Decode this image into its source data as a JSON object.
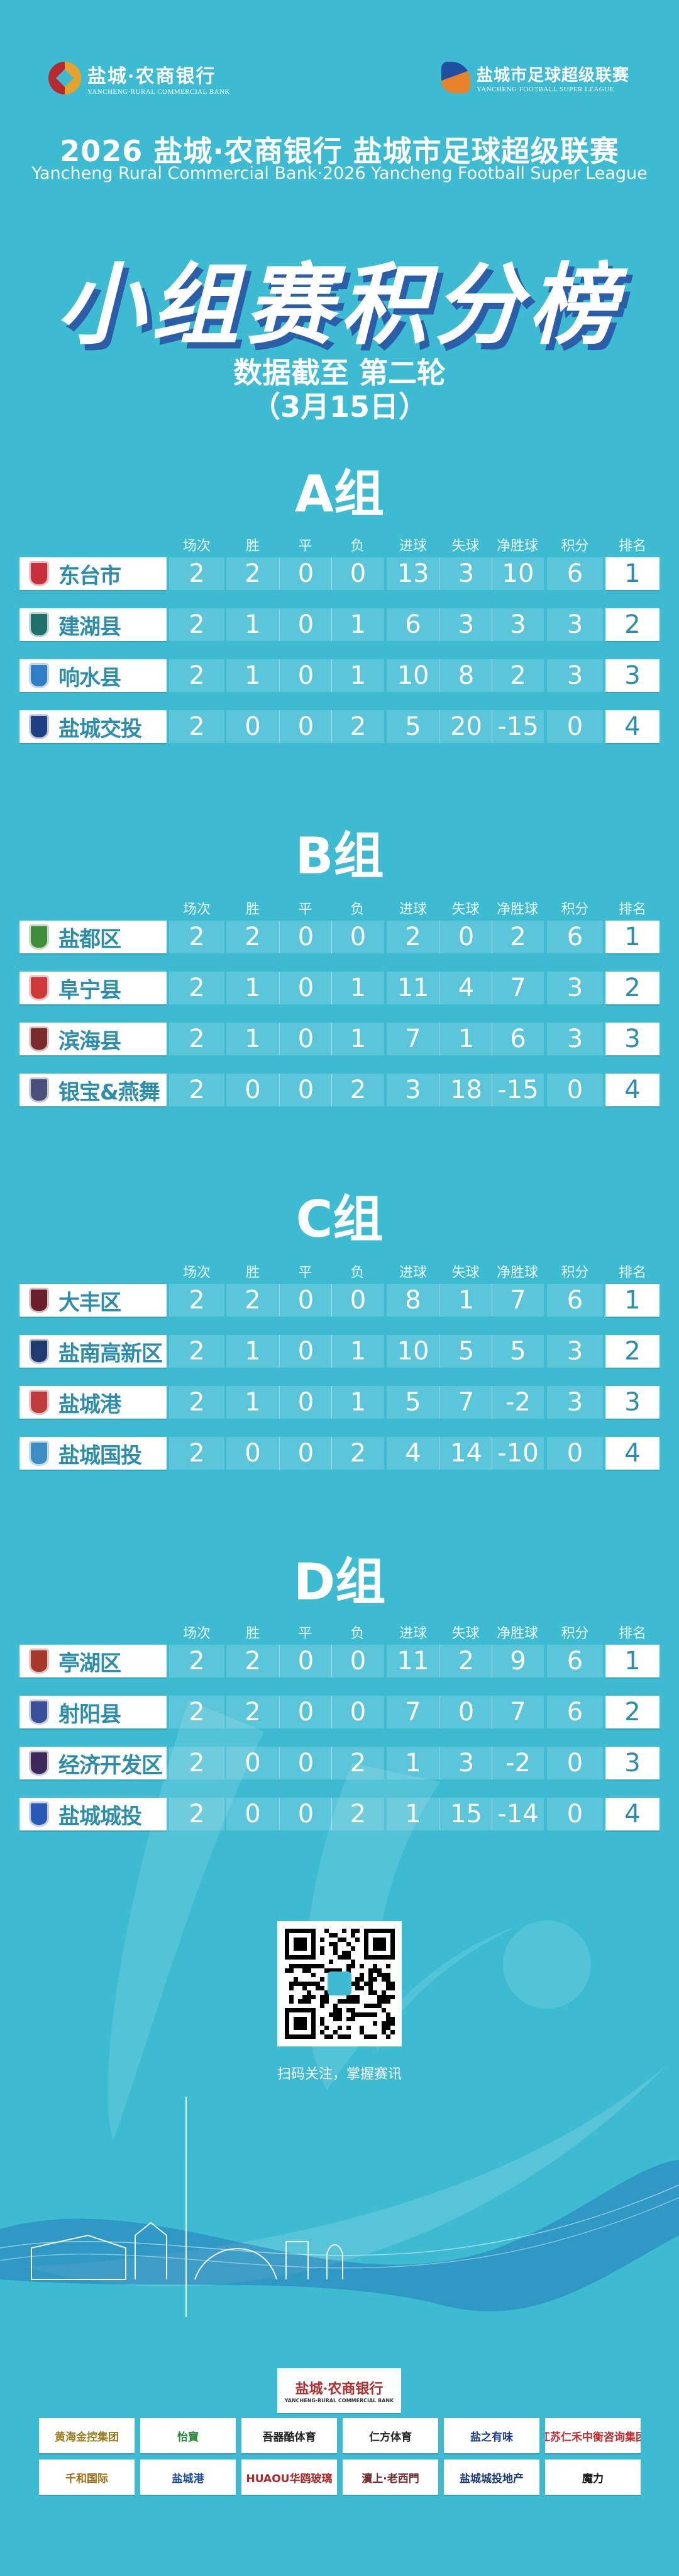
{
  "header": {
    "left_logo": {
      "name": "盐城·农商银行",
      "sub": "YANCHENG·RURAL COMMERCIAL BANK"
    },
    "right_logo": {
      "name": "盐城市足球超级联赛",
      "sub": "YANCHENG FOOTBALL SUPER LEAGUE"
    },
    "title": "2026 盐城·农商银行 盐城市足球超级联赛",
    "title_en": "Yancheng Rural Commercial Bank·2026 Yancheng Football Super League",
    "big_title": "小组赛积分榜",
    "data_as_of": "数据截至 第二轮",
    "date": "（3月15日）"
  },
  "columns": [
    "场次",
    "胜",
    "平",
    "负",
    "进球",
    "失球",
    "净胜球",
    "积分",
    "排名"
  ],
  "groups": [
    {
      "title": "A组",
      "teams": [
        {
          "name": "东台市",
          "badge_color": "#c9303a",
          "stats": [
            "2",
            "2",
            "0",
            "0",
            "13",
            "3",
            "10",
            "6"
          ],
          "rank": "1"
        },
        {
          "name": "建湖县",
          "badge_color": "#1f6f6a",
          "stats": [
            "2",
            "1",
            "0",
            "1",
            "6",
            "3",
            "3",
            "3"
          ],
          "rank": "2"
        },
        {
          "name": "响水县",
          "badge_color": "#2f7fc8",
          "stats": [
            "2",
            "1",
            "0",
            "1",
            "10",
            "8",
            "2",
            "3"
          ],
          "rank": "3"
        },
        {
          "name": "盐城交投",
          "badge_color": "#1d3f86",
          "stats": [
            "2",
            "0",
            "0",
            "2",
            "5",
            "20",
            "-15",
            "0"
          ],
          "rank": "4"
        }
      ]
    },
    {
      "title": "B组",
      "teams": [
        {
          "name": "盐都区",
          "badge_color": "#3f8f3a",
          "stats": [
            "2",
            "2",
            "0",
            "0",
            "2",
            "0",
            "2",
            "6"
          ],
          "rank": "1"
        },
        {
          "name": "阜宁县",
          "badge_color": "#d23a3a",
          "stats": [
            "2",
            "1",
            "0",
            "1",
            "11",
            "4",
            "7",
            "3"
          ],
          "rank": "2"
        },
        {
          "name": "滨海县",
          "badge_color": "#7a2a2a",
          "stats": [
            "2",
            "1",
            "0",
            "1",
            "7",
            "1",
            "6",
            "3"
          ],
          "rank": "3"
        },
        {
          "name": "银宝&燕舞",
          "badge_color": "#4a4f7a",
          "stats": [
            "2",
            "0",
            "0",
            "2",
            "3",
            "18",
            "-15",
            "0"
          ],
          "rank": "4"
        }
      ]
    },
    {
      "title": "C组",
      "teams": [
        {
          "name": "大丰区",
          "badge_color": "#6a1f2a",
          "stats": [
            "2",
            "2",
            "0",
            "0",
            "8",
            "1",
            "7",
            "6"
          ],
          "rank": "1"
        },
        {
          "name": "盐南高新区",
          "badge_color": "#1e3a6e",
          "stats": [
            "2",
            "1",
            "0",
            "1",
            "10",
            "5",
            "5",
            "3"
          ],
          "rank": "2"
        },
        {
          "name": "盐城港",
          "badge_color": "#c23b3b",
          "stats": [
            "2",
            "1",
            "0",
            "1",
            "5",
            "7",
            "-2",
            "3"
          ],
          "rank": "3"
        },
        {
          "name": "盐城国投",
          "badge_color": "#3a8ec4",
          "stats": [
            "2",
            "0",
            "0",
            "2",
            "4",
            "14",
            "-10",
            "0"
          ],
          "rank": "4"
        }
      ]
    },
    {
      "title": "D组",
      "teams": [
        {
          "name": "亭湖区",
          "badge_color": "#a8382a",
          "stats": [
            "2",
            "2",
            "0",
            "0",
            "11",
            "2",
            "9",
            "6"
          ],
          "rank": "1"
        },
        {
          "name": "射阳县",
          "badge_color": "#3a4f9a",
          "stats": [
            "2",
            "2",
            "0",
            "0",
            "7",
            "0",
            "7",
            "6"
          ],
          "rank": "2"
        },
        {
          "name": "经济开发区",
          "badge_color": "#3e2a5a",
          "stats": [
            "2",
            "0",
            "0",
            "2",
            "1",
            "3",
            "-2",
            "0"
          ],
          "rank": "3"
        },
        {
          "name": "盐城城投",
          "badge_color": "#2a5ab8",
          "stats": [
            "2",
            "0",
            "0",
            "2",
            "1",
            "15",
            "-14",
            "0"
          ],
          "rank": "4"
        }
      ]
    }
  ],
  "qr_caption": "扫码关注，掌握赛讯",
  "sponsors": {
    "main": "盐城·农商银行",
    "main_sub": "YANCHENG·RURAL COMMERCIAL BANK",
    "items": [
      "黄海金控集团",
      "怡寶",
      "吾器酷体育",
      "仁方体育",
      "盐之有味",
      "江苏仁禾中衡咨询集团",
      "千和国际",
      "盐城港",
      "HUAOU华鸥玻璃",
      "瀆上·老西門",
      "盐城城投地产",
      "魔力"
    ]
  },
  "colors": {
    "background": "#3cbbd2",
    "name_text": "#2b8dab",
    "title_shadow": "#2a5ea8"
  }
}
